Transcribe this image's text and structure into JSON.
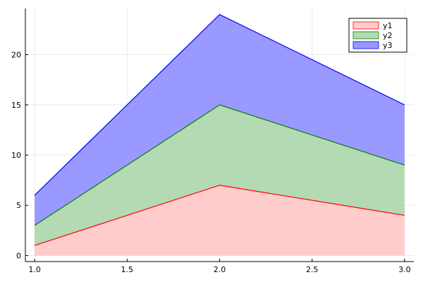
{
  "chart_data": {
    "type": "area",
    "stacked": true,
    "x": [
      1.0,
      2.0,
      3.0
    ],
    "series": [
      {
        "name": "y1",
        "values": [
          1,
          7,
          4
        ],
        "line_color": "#ff0000",
        "fill_color": "#ffcccc"
      },
      {
        "name": "y2",
        "values": [
          2,
          8,
          5
        ],
        "line_color": "#008000",
        "fill_color": "#b3dab3"
      },
      {
        "name": "y3",
        "values": [
          3,
          9,
          6
        ],
        "line_color": "#0000ff",
        "fill_color": "#9999ff"
      }
    ],
    "xlim": [
      0.95,
      3.05
    ],
    "ylim": [
      -0.6,
      24.6
    ],
    "x_ticks": [
      1.0,
      1.5,
      2.0,
      2.5,
      3.0
    ],
    "x_tick_labels": [
      "1.0",
      "1.5",
      "2.0",
      "2.5",
      "3.0"
    ],
    "y_ticks": [
      0,
      5,
      10,
      15,
      20
    ],
    "y_tick_labels": [
      "0",
      "5",
      "10",
      "15",
      "20"
    ],
    "title": "",
    "xlabel": "",
    "ylabel": "",
    "grid": true,
    "legend_position": "top-right"
  }
}
